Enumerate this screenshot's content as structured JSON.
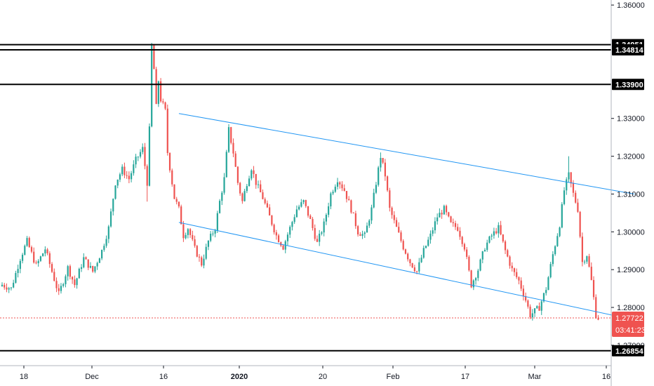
{
  "chart_data": {
    "type": "candlestick",
    "y_axis": {
      "position": "right",
      "range": [
        1.2646,
        1.3604
      ],
      "ticks": [
        "1.36000",
        "1.33000",
        "1.32000",
        "1.31000",
        "1.30000",
        "1.29000",
        "1.28000",
        "1.27000"
      ]
    },
    "x_axis": {
      "ticks": [
        {
          "label": "18",
          "bold": false
        },
        {
          "label": "Dec",
          "bold": false
        },
        {
          "label": "16",
          "bold": false
        },
        {
          "label": "2020",
          "bold": true
        },
        {
          "label": "20",
          "bold": false
        },
        {
          "label": "Feb",
          "bold": false
        },
        {
          "label": "17",
          "bold": false
        },
        {
          "label": "Mar",
          "bold": false
        },
        {
          "label": "16",
          "bold": false
        }
      ]
    },
    "levels": [
      {
        "value": 1.34951,
        "label": "1.34951"
      },
      {
        "value": 1.34814,
        "label": "1.34814"
      },
      {
        "value": 1.339,
        "label": "1.33900"
      },
      {
        "value": 1.26854,
        "label": "1.26854"
      }
    ],
    "channel": {
      "upper": [
        {
          "i": 78,
          "y": 1.3313
        },
        {
          "i": 279,
          "y": 1.31
        }
      ],
      "lower": [
        {
          "i": 78,
          "y": 1.3025
        },
        {
          "i": 279,
          "y": 1.2767
        }
      ]
    },
    "current_price": {
      "value": 1.27722,
      "label": "1.27722",
      "countdown": "03:41:23"
    },
    "colors": {
      "up": "#26a69a",
      "down": "#ef5350",
      "channel": "#2196f3",
      "level": "#000000",
      "axis": "#131722"
    },
    "keypoints": [
      [
        0,
        1.286
      ],
      [
        4,
        1.285
      ],
      [
        8,
        1.293
      ],
      [
        11,
        1.2975
      ],
      [
        15,
        1.291
      ],
      [
        19,
        1.2955
      ],
      [
        22,
        1.2895
      ],
      [
        25,
        1.2835
      ],
      [
        29,
        1.2905
      ],
      [
        32,
        1.286
      ],
      [
        36,
        1.293
      ],
      [
        40,
        1.2895
      ],
      [
        44,
        1.295
      ],
      [
        47,
        1.301
      ],
      [
        50,
        1.313
      ],
      [
        53,
        1.3165
      ],
      [
        56,
        1.314
      ],
      [
        59,
        1.319
      ],
      [
        62,
        1.322
      ],
      [
        64,
        1.313
      ],
      [
        65,
        1.327
      ],
      [
        66,
        1.349
      ],
      [
        67,
        1.343
      ],
      [
        68,
        1.333
      ],
      [
        69,
        1.34
      ],
      [
        70,
        1.335
      ],
      [
        72,
        1.332
      ],
      [
        73,
        1.321
      ],
      [
        74,
        1.317
      ],
      [
        76,
        1.309
      ],
      [
        78,
        1.306
      ],
      [
        80,
        1.299
      ],
      [
        82,
        1.301
      ],
      [
        85,
        1.2955
      ],
      [
        88,
        1.2915
      ],
      [
        91,
        1.2975
      ],
      [
        94,
        1.301
      ],
      [
        96,
        1.308
      ],
      [
        98,
        1.314
      ],
      [
        100,
        1.327
      ],
      [
        102,
        1.321
      ],
      [
        104,
        1.313
      ],
      [
        106,
        1.308
      ],
      [
        108,
        1.313
      ],
      [
        110,
        1.317
      ],
      [
        112,
        1.313
      ],
      [
        115,
        1.309
      ],
      [
        118,
        1.304
      ],
      [
        121,
        1.299
      ],
      [
        124,
        1.296
      ],
      [
        127,
        1.301
      ],
      [
        130,
        1.306
      ],
      [
        133,
        1.308
      ],
      [
        136,
        1.303
      ],
      [
        139,
        1.297
      ],
      [
        142,
        1.302
      ],
      [
        145,
        1.31
      ],
      [
        148,
        1.314
      ],
      [
        151,
        1.311
      ],
      [
        154,
        1.306
      ],
      [
        157,
        1.3
      ],
      [
        160,
        1.299
      ],
      [
        163,
        1.306
      ],
      [
        165,
        1.313
      ],
      [
        167,
        1.32
      ],
      [
        169,
        1.315
      ],
      [
        171,
        1.306
      ],
      [
        174,
        1.301
      ],
      [
        177,
        1.296
      ],
      [
        180,
        1.292
      ],
      [
        183,
        1.2895
      ],
      [
        186,
        1.295
      ],
      [
        189,
        1.299
      ],
      [
        192,
        1.304
      ],
      [
        195,
        1.306
      ],
      [
        198,
        1.302
      ],
      [
        201,
        1.301
      ],
      [
        204,
        1.296
      ],
      [
        207,
        1.286
      ],
      [
        210,
        1.29
      ],
      [
        213,
        1.296
      ],
      [
        216,
        1.299
      ],
      [
        219,
        1.301
      ],
      [
        222,
        1.295
      ],
      [
        225,
        1.29
      ],
      [
        228,
        1.287
      ],
      [
        231,
        1.282
      ],
      [
        233,
        1.278
      ],
      [
        235,
        1.279
      ],
      [
        237,
        1.28
      ],
      [
        240,
        1.285
      ],
      [
        243,
        1.294
      ],
      [
        246,
        1.302
      ],
      [
        248,
        1.311
      ],
      [
        250,
        1.315
      ],
      [
        252,
        1.31
      ],
      [
        254,
        1.306
      ],
      [
        256,
        1.292
      ],
      [
        258,
        1.294
      ],
      [
        260,
        1.287
      ],
      [
        262,
        1.278
      ],
      [
        263,
        1.2772
      ]
    ]
  }
}
